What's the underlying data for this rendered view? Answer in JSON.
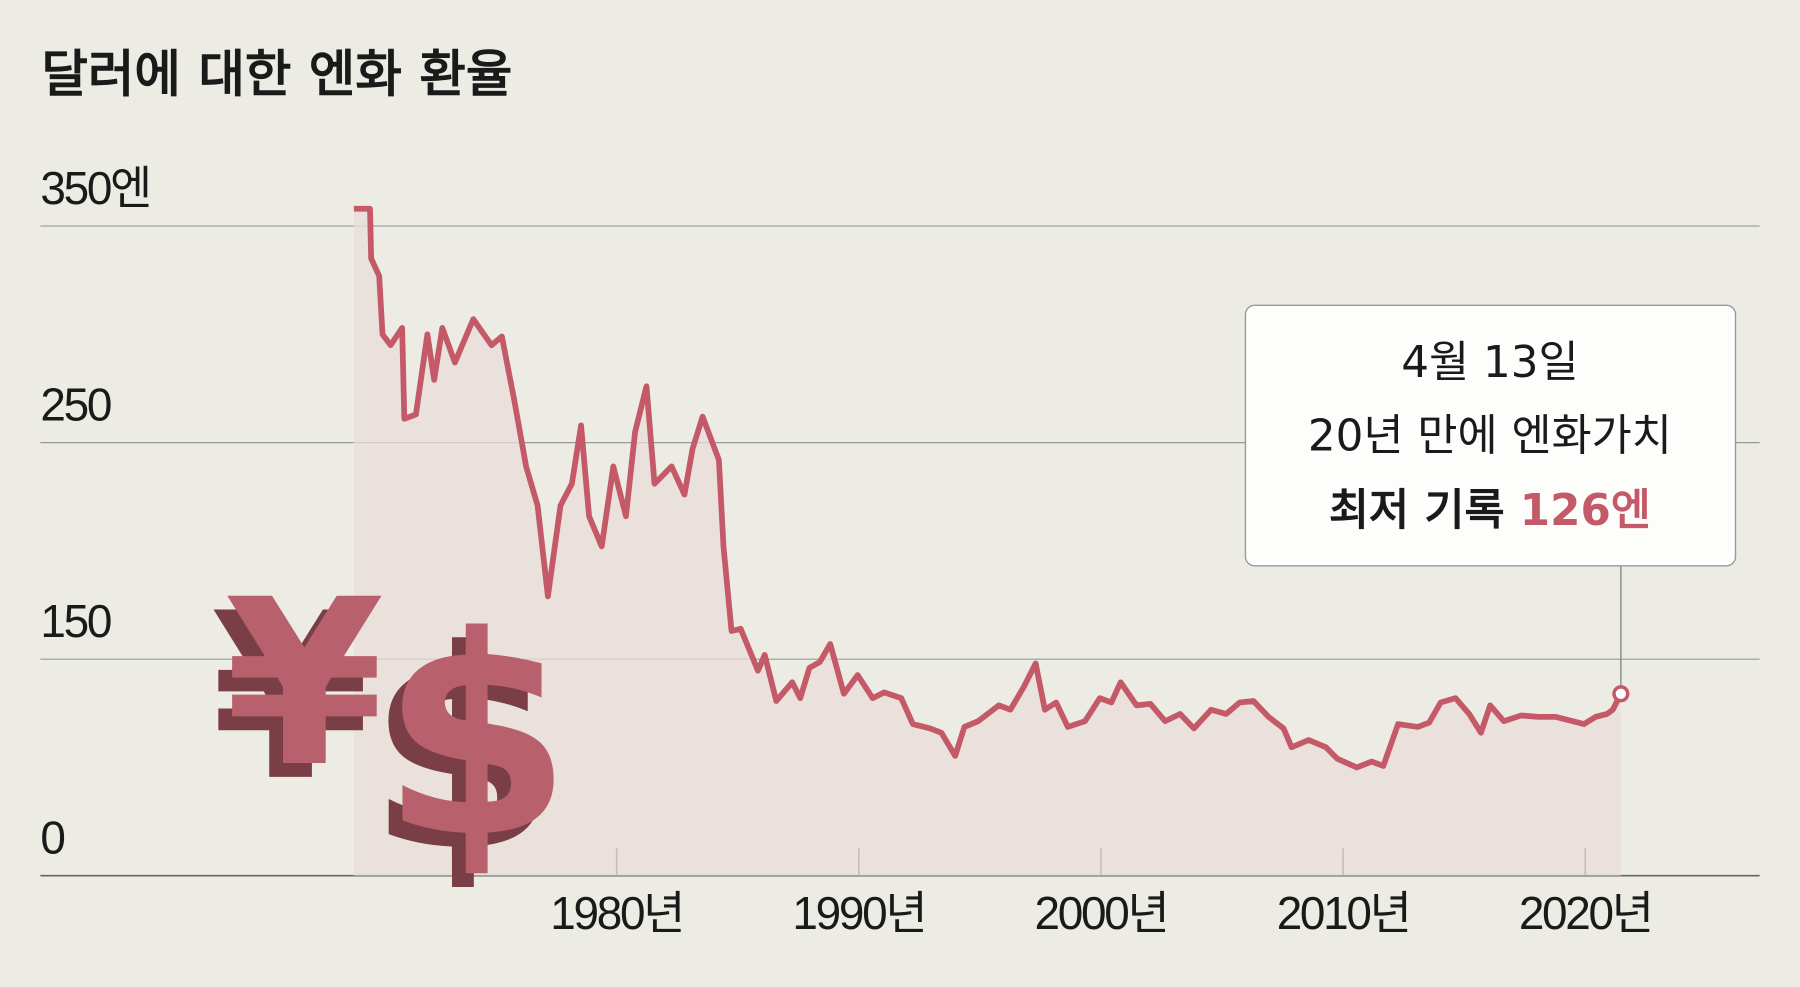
{
  "chart_data": {
    "type": "line",
    "title": "달러에 대한 엔화 환율",
    "symbols": [
      "¥",
      "$"
    ],
    "color": "#c45a68",
    "area_color": "#e9ded9",
    "grid": true,
    "xlim": [
      1956.2,
      2027.2
    ],
    "xticks": [
      {
        "value": 1980,
        "label": "1980년"
      },
      {
        "value": 1990,
        "label": "1990년"
      },
      {
        "value": 2000,
        "label": "2000년"
      },
      {
        "value": 2010,
        "label": "2010년"
      },
      {
        "value": 2020,
        "label": "2020년"
      }
    ],
    "ylim": [
      0,
      350
    ],
    "yticks": [
      0,
      150,
      250,
      {
        "value": 350,
        "label": "350엔"
      }
    ],
    "x": [
      1969.15,
      1969.81,
      1969.86,
      1970.19,
      1970.33,
      1970.66,
      1971.14,
      1971.23,
      1971.71,
      1972.18,
      1972.46,
      1972.8,
      1973.32,
      1974.08,
      1974.83,
      1975.26,
      1975.78,
      1976.26,
      1976.73,
      1977.16,
      1977.68,
      1978.15,
      1978.53,
      1978.86,
      1979.38,
      1979.86,
      1980.38,
      1980.76,
      1981.23,
      1981.56,
      1982.27,
      1982.8,
      1983.13,
      1983.55,
      1984.22,
      1984.41,
      1984.74,
      1985.12,
      1985.83,
      1986.11,
      1986.59,
      1987.25,
      1987.58,
      1987.96,
      1988.39,
      1988.82,
      1989.38,
      1989.95,
      1990.57,
      1991.04,
      1991.75,
      1992.23,
      1992.94,
      1993.41,
      1993.98,
      1994.36,
      1994.93,
      1995.78,
      1996.26,
      1996.82,
      1997.3,
      1997.68,
      1998.15,
      1998.63,
      1999.34,
      1999.95,
      2000.43,
      2000.81,
      2001.47,
      2002.04,
      2002.65,
      2003.27,
      2003.84,
      2004.55,
      2005.17,
      2005.73,
      2006.3,
      2006.92,
      2007.54,
      2007.87,
      2008.58,
      2009.29,
      2009.76,
      2010.57,
      2011.18,
      2011.66,
      2012.27,
      2013.08,
      2013.55,
      2014.03,
      2014.64,
      2015.21,
      2015.69,
      2016.07,
      2016.64,
      2017.35,
      2018.06,
      2018.77,
      2019.48,
      2019.95,
      2020.43,
      2020.9,
      2021.14,
      2021.47
    ],
    "values": [
      358,
      358,
      335,
      327,
      300,
      295,
      303,
      261,
      263,
      300,
      279,
      303,
      287,
      307,
      295,
      299,
      269,
      239,
      221,
      179,
      221,
      231,
      258,
      216,
      202,
      239,
      216,
      255,
      276,
      231,
      239,
      226,
      247,
      262,
      242,
      202,
      163,
      164,
      142,
      152,
      121,
      134,
      123,
      144,
      148,
      157,
      126,
      139,
      123,
      127,
      123,
      105,
      102,
      99,
      83,
      103,
      107,
      118,
      115,
      131,
      147,
      115,
      120,
      103,
      107,
      123,
      120,
      134,
      118,
      119,
      107,
      112,
      102,
      115,
      112,
      120,
      121,
      110,
      102,
      89,
      94,
      89,
      81,
      75,
      79,
      76,
      105,
      103,
      106,
      120,
      123,
      112,
      99,
      118,
      107,
      111,
      110,
      110,
      107,
      105,
      110,
      112,
      115,
      126
    ],
    "annotation": {
      "date": "4월 13일",
      "text": "20년 만에 엔화가치",
      "label": "최저 기록",
      "highlight": "126엔"
    }
  }
}
